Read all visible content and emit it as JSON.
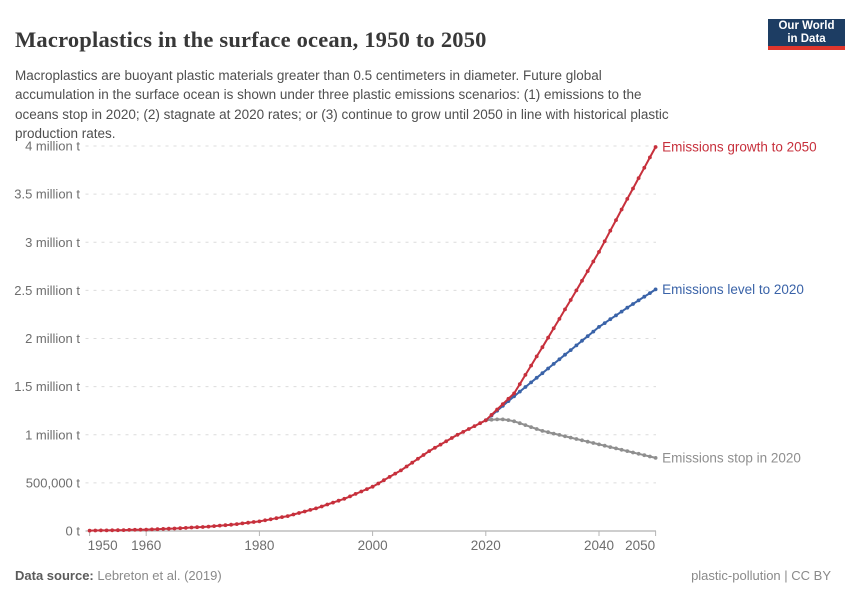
{
  "header": {
    "title": "Macroplastics in the surface ocean, 1950 to 2050",
    "subtitle_lines": [
      "Macroplastics are buoyant plastic materials greater than 0.5 centimeters in diameter. Future global",
      "accumulation in the surface ocean is shown under three plastic emissions scenarios: (1) emissions to the",
      "oceans stop in 2020; (2) stagnate at 2020 rates; or (3) continue to grow until 2050 in line with historical plastic",
      "production rates."
    ],
    "logo": {
      "line1": "Our World",
      "line2": "in Data",
      "bg_color": "#1d3d63",
      "stripe_color": "#e0362c"
    }
  },
  "footer": {
    "source_label": "Data source:",
    "source_value": " Lebreton et al. (2019)",
    "right_text": "plastic-pollution | CC BY"
  },
  "chart_data": {
    "type": "line",
    "title": "Macroplastics in the surface ocean, 1950 to 2050",
    "xlabel": "",
    "ylabel": "",
    "unit": "million t",
    "grid": "dashed-horizontal",
    "legend_position": "line-end-labels",
    "xrange": [
      1950,
      2050
    ],
    "xticks": [
      1950,
      1960,
      1980,
      2000,
      2020,
      2040,
      2050
    ],
    "ylim": [
      0,
      4
    ],
    "ytick_values": [
      0,
      0.5,
      1,
      1.5,
      2,
      2.5,
      3,
      3.5,
      4
    ],
    "ytick_labels": [
      "0 t",
      "500,000 t",
      "1 million t",
      "1.5 million t",
      "2 million t",
      "2.5 million t",
      "3 million t",
      "3.5 million t",
      "4 million t"
    ],
    "axis_color": "#9e9e9e",
    "grid_color": "#dcdcdc",
    "tick_label_color": "#6e6e6e",
    "series": [
      {
        "name": "Emissions growth to 2050",
        "color": "#c7303c",
        "start_year": 1950,
        "end_year": 2050,
        "step": 1,
        "values": [
          0.004,
          0.005,
          0.006,
          0.006,
          0.007,
          0.008,
          0.009,
          0.011,
          0.012,
          0.014,
          0.015,
          0.017,
          0.019,
          0.022,
          0.024,
          0.026,
          0.029,
          0.032,
          0.036,
          0.039,
          0.042,
          0.046,
          0.051,
          0.056,
          0.06,
          0.065,
          0.072,
          0.079,
          0.086,
          0.093,
          0.1,
          0.111,
          0.122,
          0.133,
          0.144,
          0.155,
          0.171,
          0.187,
          0.203,
          0.219,
          0.235,
          0.255,
          0.275,
          0.295,
          0.315,
          0.335,
          0.36,
          0.385,
          0.41,
          0.435,
          0.46,
          0.494,
          0.528,
          0.562,
          0.596,
          0.63,
          0.67,
          0.71,
          0.75,
          0.79,
          0.83,
          0.864,
          0.898,
          0.932,
          0.966,
          1.0,
          1.03,
          1.06,
          1.09,
          1.12,
          1.15,
          1.206,
          1.262,
          1.318,
          1.374,
          1.43,
          1.526,
          1.622,
          1.718,
          1.814,
          1.91,
          2.008,
          2.106,
          2.204,
          2.302,
          2.4,
          2.5,
          2.6,
          2.7,
          2.8,
          2.9,
          3.01,
          3.12,
          3.23,
          3.34,
          3.45,
          3.558,
          3.666,
          3.774,
          3.882,
          3.99
        ]
      },
      {
        "name": "Emissions level to 2020",
        "color": "#3a63a8",
        "start_year": 2020,
        "end_year": 2050,
        "step": 1,
        "values": [
          1.15,
          1.2,
          1.25,
          1.3,
          1.35,
          1.4,
          1.448,
          1.496,
          1.544,
          1.592,
          1.64,
          1.688,
          1.736,
          1.784,
          1.832,
          1.88,
          1.928,
          1.976,
          2.024,
          2.072,
          2.12,
          2.16,
          2.2,
          2.24,
          2.28,
          2.32,
          2.358,
          2.396,
          2.434,
          2.472,
          2.51
        ]
      },
      {
        "name": "Emissions stop in 2020",
        "color": "#8f8f8f",
        "start_year": 2020,
        "end_year": 2050,
        "step": 1,
        "values": [
          1.15,
          1.156,
          1.16,
          1.16,
          1.152,
          1.14,
          1.12,
          1.1,
          1.08,
          1.06,
          1.04,
          1.026,
          1.012,
          0.998,
          0.984,
          0.97,
          0.956,
          0.942,
          0.928,
          0.914,
          0.9,
          0.886,
          0.872,
          0.858,
          0.844,
          0.83,
          0.816,
          0.802,
          0.788,
          0.774,
          0.76
        ]
      }
    ]
  }
}
